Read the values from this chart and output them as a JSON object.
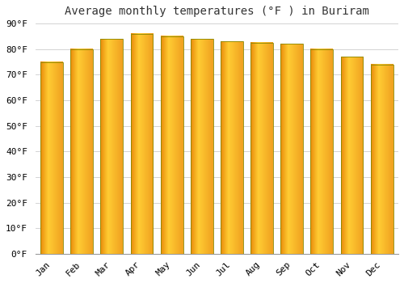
{
  "months": [
    "Jan",
    "Feb",
    "Mar",
    "Apr",
    "May",
    "Jun",
    "Jul",
    "Aug",
    "Sep",
    "Oct",
    "Nov",
    "Dec"
  ],
  "values": [
    75,
    80,
    84,
    86,
    85,
    84,
    83,
    82.5,
    82,
    80,
    77,
    74
  ],
  "bar_color_left": "#E8890A",
  "bar_color_mid": "#FFCC33",
  "bar_color_right": "#F0A020",
  "bar_edge_color": "#888800",
  "title": "Average monthly temperatures (°F ) in Buriram",
  "ylim": [
    0,
    90
  ],
  "yticks": [
    0,
    10,
    20,
    30,
    40,
    50,
    60,
    70,
    80,
    90
  ],
  "ytick_labels": [
    "0°F",
    "10°F",
    "20°F",
    "30°F",
    "40°F",
    "50°F",
    "60°F",
    "70°F",
    "80°F",
    "90°F"
  ],
  "background_color": "#FFFFFF",
  "grid_color": "#CCCCCC",
  "title_fontsize": 10,
  "tick_fontsize": 8,
  "bar_width": 0.75
}
